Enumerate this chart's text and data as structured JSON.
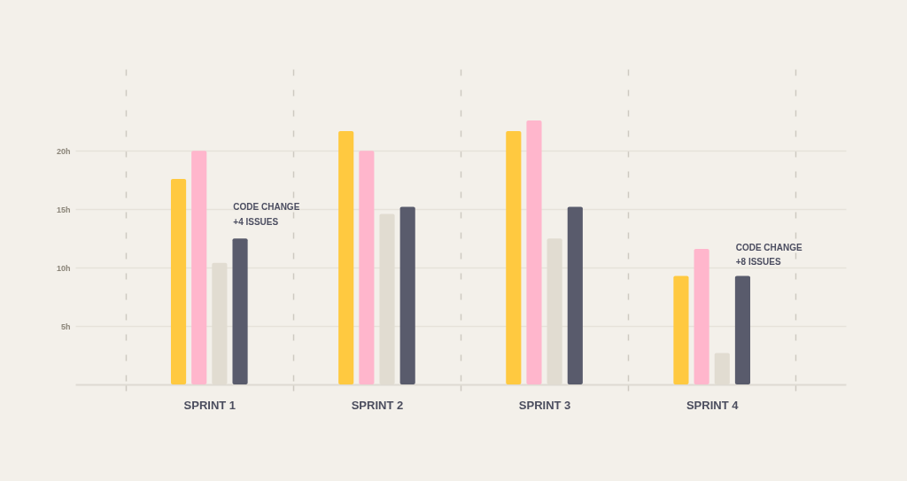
{
  "chart_data": {
    "type": "bar",
    "categories": [
      "SPRINT 1",
      "SPRINT 2",
      "SPRINT 3",
      "SPRINT 4"
    ],
    "series": [
      {
        "color": "#ffc940",
        "values": [
          17.6,
          21.7,
          21.7,
          9.3
        ]
      },
      {
        "color": "#ffb6cc",
        "values": [
          20,
          20,
          22.6,
          11.6
        ]
      },
      {
        "color": "#e1dcd1",
        "values": [
          10.4,
          14.6,
          12.5,
          2.7
        ]
      },
      {
        "color": "#595b6c",
        "values": [
          12.5,
          15.2,
          15.2,
          9.3
        ]
      }
    ],
    "ylim": [
      0,
      27
    ],
    "yticks": [
      {
        "value": 5,
        "label": "5h"
      },
      {
        "value": 10,
        "label": "10h"
      },
      {
        "value": 15,
        "label": "15h"
      },
      {
        "value": 20,
        "label": "20h"
      }
    ],
    "grid": true,
    "annotations": [
      {
        "text": "CODE CHANGE",
        "x": "SPRINT 1",
        "y": 15.2
      },
      {
        "text": "+4 ISSUES",
        "x": "SPRINT 1",
        "y": 13.9
      },
      {
        "text": "CODE CHANGE",
        "x": "SPRINT 4",
        "y": 11.7
      },
      {
        "text": "+8 ISSUES",
        "x": "SPRINT 4",
        "y": 10.5
      }
    ]
  }
}
